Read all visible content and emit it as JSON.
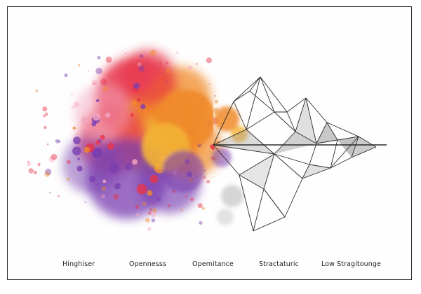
{
  "labels": [
    "Hinghiser",
    "Opennesss",
    "Opemitance",
    "Stractaturic",
    "Low Stragitounge"
  ],
  "palette": {
    "splash_red": "#e8344a",
    "splash_orange": "#f08a2a",
    "splash_yellow": "#f2b233",
    "splash_purple": "#7a3fb0",
    "splash_pink": "#f3a7c0",
    "line_color": "#2b2b2b",
    "shade_grey": "#9a9a9a"
  }
}
